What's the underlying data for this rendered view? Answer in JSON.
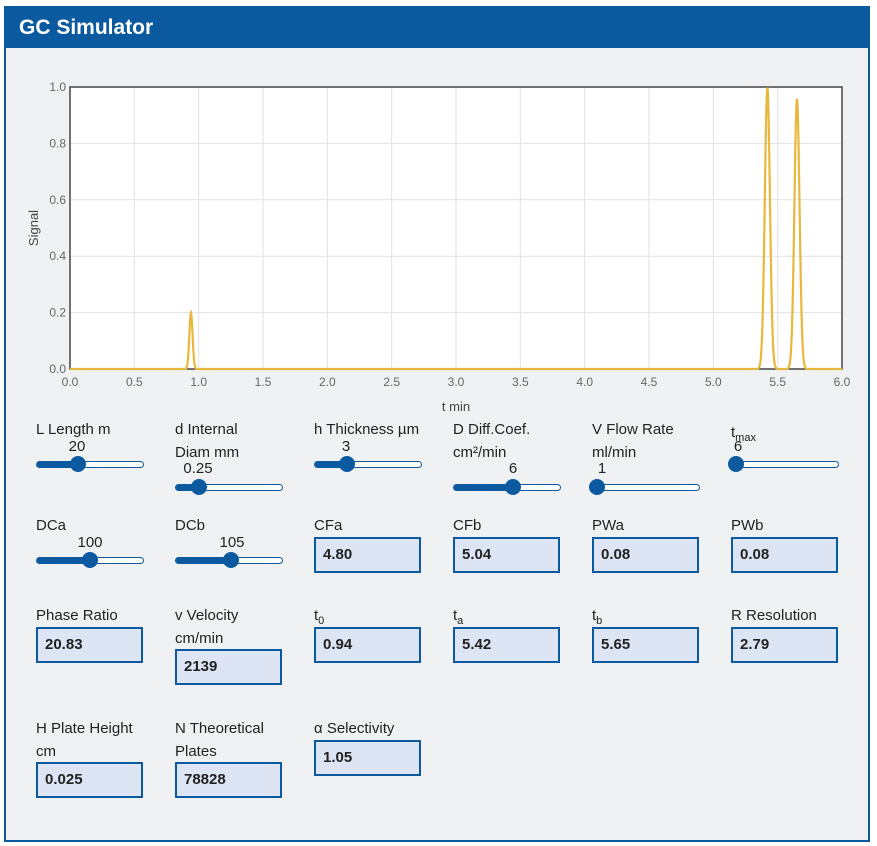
{
  "app": {
    "title": "GC Simulator"
  },
  "chart_data": {
    "type": "line",
    "xlabel": "t min",
    "ylabel": "Signal",
    "xlim": [
      0,
      6
    ],
    "ylim": [
      0,
      1
    ],
    "x_ticks": [
      "0.0",
      "0.5",
      "1.0",
      "1.5",
      "2.0",
      "2.5",
      "3.0",
      "3.5",
      "4.0",
      "4.5",
      "5.0",
      "5.5",
      "6.0"
    ],
    "y_ticks": [
      "0.0",
      "0.2",
      "0.4",
      "0.6",
      "0.8",
      "1.0"
    ],
    "grid": true,
    "color": "#e8b83e",
    "peaks": [
      {
        "center": 0.94,
        "height": 0.2,
        "width": 0.05
      },
      {
        "center": 5.42,
        "height": 1.0,
        "width": 0.08
      },
      {
        "center": 5.65,
        "height": 0.96,
        "width": 0.08
      }
    ]
  },
  "sliders": {
    "length": {
      "label": "L Length m",
      "value": "20",
      "fraction": 0.37
    },
    "diameter": {
      "label_line1": "d Internal",
      "label_line2": "Diam mm",
      "value": "0.25",
      "fraction": 0.19
    },
    "thickness": {
      "label": "h Thickness µm",
      "value": "3",
      "fraction": 0.28
    },
    "diffusion": {
      "label_line1": "D Diff.Coef.",
      "label_line2": "cm²/min",
      "value": "6",
      "fraction": 0.55
    },
    "flow": {
      "label_line1": "V Flow Rate",
      "label_line2": "ml/min",
      "value": "1",
      "fraction": 0.0
    },
    "tmax": {
      "label_main": "t",
      "label_sub": "max",
      "value": "6",
      "fraction": 0.0
    },
    "dca": {
      "label": "DCa",
      "value": "100",
      "fraction": 0.49
    },
    "dcb": {
      "label": "DCb",
      "value": "105",
      "fraction": 0.51
    }
  },
  "outputs": {
    "cfa": {
      "label": "CFa",
      "value": "4.80"
    },
    "cfb": {
      "label": "CFb",
      "value": "5.04"
    },
    "pwa": {
      "label": "PWa",
      "value": "0.08"
    },
    "pwb": {
      "label": "PWb",
      "value": "0.08"
    },
    "phase_ratio": {
      "label": "Phase Ratio",
      "value": "20.83"
    },
    "velocity": {
      "label_line1": "v Velocity",
      "label_line2": "cm/min",
      "value": "2139"
    },
    "t0": {
      "label_main": "t",
      "label_sub": "0",
      "value": "0.94"
    },
    "ta": {
      "label_main": "t",
      "label_sub": "a",
      "value": "5.42"
    },
    "tb": {
      "label_main": "t",
      "label_sub": "b",
      "value": "5.65"
    },
    "resolution": {
      "label": "R Resolution",
      "value": "2.79"
    },
    "plate_height": {
      "label_line1": "H Plate Height",
      "label_line2": "cm",
      "value": "0.025"
    },
    "plates": {
      "label_line1": "N Theoretical",
      "label_line2": "Plates",
      "value": "78828"
    },
    "selectivity": {
      "label": "α Selectivity",
      "value": "1.05"
    }
  }
}
